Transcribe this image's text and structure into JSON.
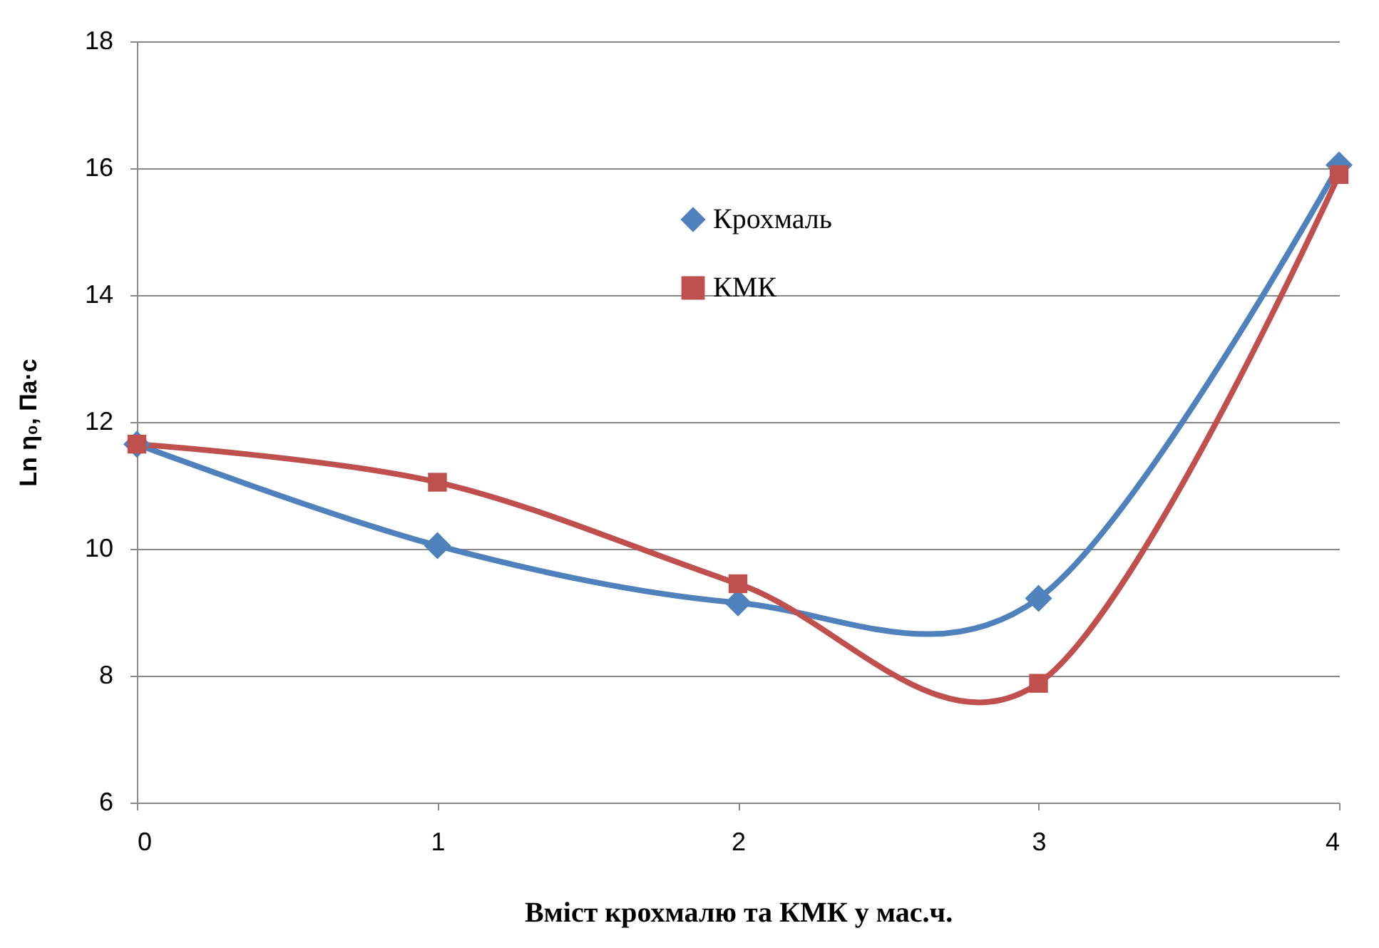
{
  "chart_data": {
    "type": "line",
    "xlabel": "Вміст крохмалю та КМК у мас.ч.",
    "ylabel": "Ln η₀, Па·с",
    "x": [
      0,
      1,
      2,
      3,
      4
    ],
    "series": [
      {
        "name": "Крохмаль",
        "color": "#4f81bd",
        "marker": "diamond",
        "values": [
          11.65,
          10.05,
          9.15,
          9.22,
          16.05
        ]
      },
      {
        "name": "КМК",
        "color": "#c0504d",
        "marker": "square",
        "values": [
          11.65,
          11.05,
          9.45,
          7.88,
          15.9
        ]
      }
    ],
    "xlim": [
      0,
      4
    ],
    "xticks": [
      0,
      1,
      2,
      3,
      4
    ],
    "ylim": [
      6,
      18
    ],
    "yticks": [
      6,
      8,
      10,
      12,
      14,
      16,
      18
    ],
    "grid": "y",
    "legend": "top"
  }
}
